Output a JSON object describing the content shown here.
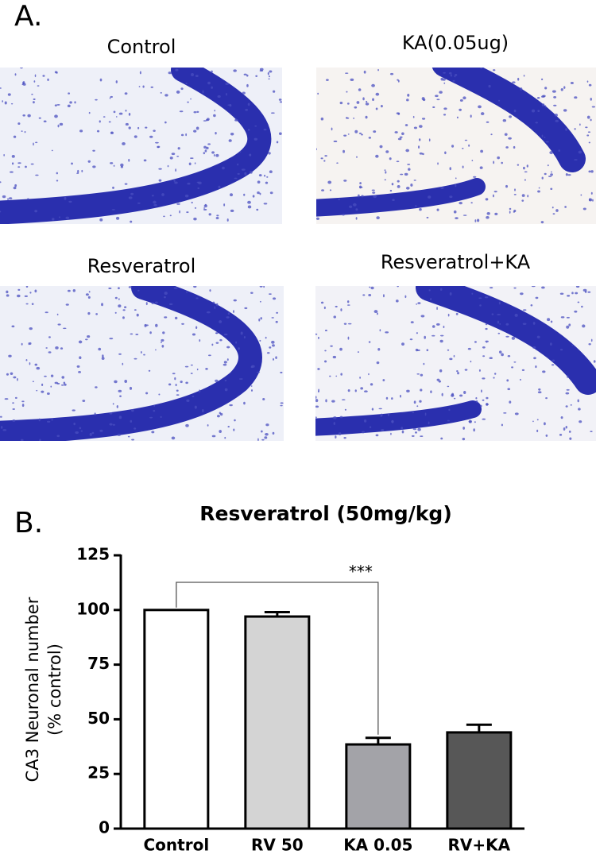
{
  "figure": {
    "panel_a_label": "A.",
    "micrographs": [
      "Control",
      "KA(0.05ug)",
      "Resveratrol",
      "Resveratrol+KA"
    ],
    "panel_b_label": "B."
  },
  "chart_data": {
    "type": "bar",
    "title": "Resveratrol (50mg/kg)",
    "y_label": [
      "CA3 Neuronal number",
      "(% control)"
    ],
    "categories": [
      "Control",
      "RV 50",
      "KA 0.05",
      "RV+KA"
    ],
    "values": [
      100,
      97,
      38.5,
      44
    ],
    "errors": [
      0,
      2,
      3,
      3.5
    ],
    "colors": [
      "#ffffff",
      "#d4d4d4",
      "#a3a3a8",
      "#575757"
    ],
    "ylim": [
      0,
      125
    ],
    "yticks": [
      0,
      25,
      50,
      75,
      100,
      125
    ],
    "annotation": {
      "text": "***",
      "from": 0,
      "to": 2
    }
  }
}
